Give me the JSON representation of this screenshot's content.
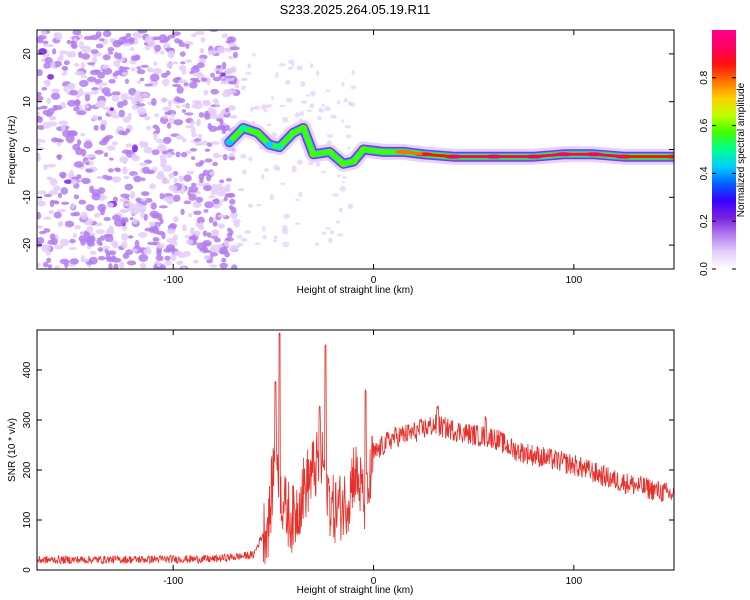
{
  "title": "S233.2025.264.05.19.R11",
  "chart_data": [
    {
      "type": "heatmap",
      "name": "spectrogram",
      "xlabel": "Height of straight line (km)",
      "ylabel": "Frequency (Hz)",
      "xlim": [
        -168,
        150
      ],
      "ylim": [
        -25,
        25
      ],
      "xticks": [
        -100,
        0,
        100
      ],
      "yticks": [
        -20,
        -10,
        0,
        10,
        20
      ],
      "colorbar": {
        "label": "Normalized spectral amplitude",
        "range": [
          0,
          1
        ],
        "ticks": [
          0.0,
          0.2,
          0.4,
          0.6,
          0.8
        ],
        "colors": [
          "#ffffff",
          "#e4cdfa",
          "#b27cf0",
          "#7a20e0",
          "#3a00ff",
          "#0060ff",
          "#00d0ff",
          "#00ff90",
          "#40ff00",
          "#c0ff00",
          "#ffd000",
          "#ff7000",
          "#ff1010",
          "#ff0060",
          "#ff0090"
        ]
      },
      "noise_region_x": [
        -168,
        -68
      ],
      "ridge": [
        {
          "x": -72,
          "y": 1.5,
          "a": 0.45
        },
        {
          "x": -65,
          "y": 4.5,
          "a": 0.5
        },
        {
          "x": -58,
          "y": 3.5,
          "a": 0.55
        },
        {
          "x": -52,
          "y": 1.0,
          "a": 0.45
        },
        {
          "x": -47,
          "y": 0.5,
          "a": 0.5
        },
        {
          "x": -40,
          "y": 3.5,
          "a": 0.6
        },
        {
          "x": -35,
          "y": 4.5,
          "a": 0.55
        },
        {
          "x": -30,
          "y": -1.0,
          "a": 0.55
        },
        {
          "x": -22,
          "y": -0.5,
          "a": 0.6
        },
        {
          "x": -15,
          "y": -3.0,
          "a": 0.6
        },
        {
          "x": -10,
          "y": -2.5,
          "a": 0.55
        },
        {
          "x": -5,
          "y": 0.0,
          "a": 0.55
        },
        {
          "x": 5,
          "y": -0.5,
          "a": 0.6
        },
        {
          "x": 15,
          "y": -0.5,
          "a": 0.8
        },
        {
          "x": 25,
          "y": -1.0,
          "a": 0.85
        },
        {
          "x": 40,
          "y": -1.5,
          "a": 0.9
        },
        {
          "x": 60,
          "y": -1.5,
          "a": 0.95
        },
        {
          "x": 80,
          "y": -1.5,
          "a": 0.95
        },
        {
          "x": 95,
          "y": -1.0,
          "a": 0.9
        },
        {
          "x": 110,
          "y": -1.0,
          "a": 0.95
        },
        {
          "x": 125,
          "y": -1.5,
          "a": 0.9
        },
        {
          "x": 150,
          "y": -1.5,
          "a": 0.85
        }
      ]
    },
    {
      "type": "line",
      "name": "snr",
      "xlabel": "Height of straight line (km)",
      "ylabel": "SNR (10 * v/v)",
      "xlim": [
        -168,
        150
      ],
      "ylim": [
        0,
        480
      ],
      "xticks": [
        -100,
        0,
        100
      ],
      "yticks": [
        0,
        100,
        200,
        300,
        400
      ],
      "color": "#e8302a",
      "envelope": {
        "x": [
          -168,
          -80,
          -60,
          -52,
          -50,
          -48,
          -46,
          -44,
          -40,
          -35,
          -30,
          -28,
          -26,
          -24,
          -22,
          -20,
          -15,
          -12,
          -10,
          -8,
          -6,
          -4,
          -2,
          0,
          5,
          10,
          20,
          30,
          40,
          50,
          60,
          70,
          80,
          100,
          120,
          140,
          150
        ],
        "y": [
          20,
          22,
          30,
          100,
          200,
          230,
          150,
          120,
          100,
          160,
          200,
          210,
          220,
          200,
          140,
          120,
          130,
          150,
          200,
          180,
          160,
          120,
          170,
          230,
          250,
          265,
          275,
          290,
          280,
          270,
          265,
          240,
          230,
          210,
          180,
          160,
          150
        ]
      },
      "spikes": [
        {
          "x": -47,
          "y": 475
        },
        {
          "x": -49,
          "y": 380
        },
        {
          "x": -24,
          "y": 455
        },
        {
          "x": -27,
          "y": 330
        },
        {
          "x": -4,
          "y": 365
        },
        {
          "x": 32,
          "y": 330
        },
        {
          "x": 56,
          "y": 310
        }
      ]
    }
  ]
}
